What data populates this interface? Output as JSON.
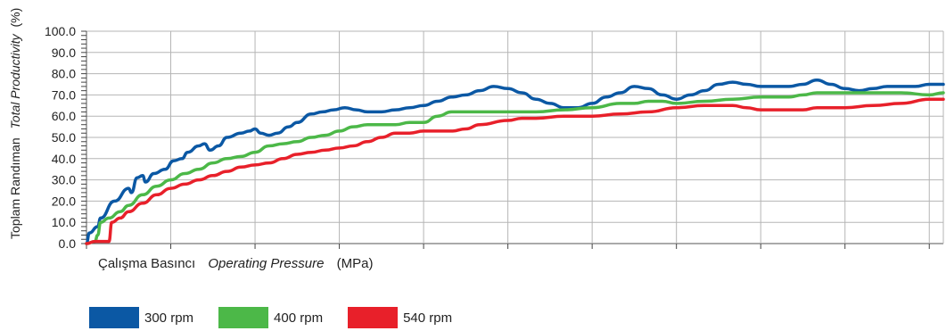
{
  "chart_data": {
    "type": "line",
    "ylabel": {
      "main": "Toplam Randıman",
      "italic": "Total Productivity",
      "unit": "(%)"
    },
    "xlabel": {
      "main": "Çalışma Basıncı",
      "italic": "Operating Pressure",
      "unit": "(MPa)"
    },
    "xlim": [
      0,
      3.05
    ],
    "ylim": [
      0,
      100
    ],
    "x_ticks": [
      "0.0",
      "0.3",
      "0.6",
      "0.9",
      "1.2",
      "1.5",
      "1.8",
      "2.1",
      "2.4",
      "2.7",
      "3.0"
    ],
    "y_ticks": [
      "0.0",
      "10.0",
      "20.0",
      "30.0",
      "40.0",
      "50.0",
      "60.0",
      "70.0",
      "80.0",
      "90.0",
      "100.0"
    ],
    "grid": true,
    "legend_position": "bottom-left",
    "series": [
      {
        "name": "300 rpm",
        "color": "#0b58a4",
        "points": [
          [
            0,
            0
          ],
          [
            0.01,
            5
          ],
          [
            0.04,
            8
          ],
          [
            0.05,
            12
          ],
          [
            0.1,
            20
          ],
          [
            0.15,
            26
          ],
          [
            0.16,
            24
          ],
          [
            0.18,
            31
          ],
          [
            0.2,
            32
          ],
          [
            0.21,
            29
          ],
          [
            0.24,
            33
          ],
          [
            0.28,
            35
          ],
          [
            0.31,
            39
          ],
          [
            0.34,
            40
          ],
          [
            0.36,
            43
          ],
          [
            0.4,
            46
          ],
          [
            0.42,
            47
          ],
          [
            0.44,
            44
          ],
          [
            0.47,
            46
          ],
          [
            0.5,
            50
          ],
          [
            0.55,
            52
          ],
          [
            0.58,
            53
          ],
          [
            0.6,
            54
          ],
          [
            0.62,
            52
          ],
          [
            0.65,
            51
          ],
          [
            0.68,
            52
          ],
          [
            0.72,
            55
          ],
          [
            0.75,
            57
          ],
          [
            0.8,
            61
          ],
          [
            0.84,
            62
          ],
          [
            0.88,
            63
          ],
          [
            0.92,
            64
          ],
          [
            0.96,
            63
          ],
          [
            1.0,
            62
          ],
          [
            1.05,
            62
          ],
          [
            1.1,
            63
          ],
          [
            1.15,
            64
          ],
          [
            1.2,
            65
          ],
          [
            1.25,
            67
          ],
          [
            1.3,
            69
          ],
          [
            1.35,
            70
          ],
          [
            1.4,
            72
          ],
          [
            1.45,
            74
          ],
          [
            1.5,
            73
          ],
          [
            1.55,
            71
          ],
          [
            1.6,
            68
          ],
          [
            1.65,
            66
          ],
          [
            1.7,
            64
          ],
          [
            1.75,
            64
          ],
          [
            1.8,
            66
          ],
          [
            1.85,
            69
          ],
          [
            1.9,
            71
          ],
          [
            1.95,
            74
          ],
          [
            2.0,
            73
          ],
          [
            2.05,
            70
          ],
          [
            2.1,
            68
          ],
          [
            2.15,
            70
          ],
          [
            2.2,
            72
          ],
          [
            2.25,
            75
          ],
          [
            2.3,
            76
          ],
          [
            2.35,
            75
          ],
          [
            2.4,
            74
          ],
          [
            2.45,
            74
          ],
          [
            2.5,
            74
          ],
          [
            2.55,
            75
          ],
          [
            2.6,
            77
          ],
          [
            2.65,
            75
          ],
          [
            2.7,
            73
          ],
          [
            2.75,
            72
          ],
          [
            2.8,
            73
          ],
          [
            2.85,
            74
          ],
          [
            2.9,
            74
          ],
          [
            2.95,
            74
          ],
          [
            3.0,
            75
          ],
          [
            3.05,
            75
          ]
        ]
      },
      {
        "name": "400 rpm",
        "color": "#4cb848",
        "points": [
          [
            0,
            0
          ],
          [
            0.03,
            1
          ],
          [
            0.04,
            4
          ],
          [
            0.05,
            10
          ],
          [
            0.08,
            12
          ],
          [
            0.12,
            15
          ],
          [
            0.15,
            18
          ],
          [
            0.2,
            23
          ],
          [
            0.25,
            27
          ],
          [
            0.3,
            30
          ],
          [
            0.35,
            33
          ],
          [
            0.4,
            35
          ],
          [
            0.45,
            38
          ],
          [
            0.5,
            40
          ],
          [
            0.55,
            41
          ],
          [
            0.6,
            43
          ],
          [
            0.65,
            46
          ],
          [
            0.7,
            47
          ],
          [
            0.75,
            48
          ],
          [
            0.8,
            50
          ],
          [
            0.85,
            51
          ],
          [
            0.9,
            53
          ],
          [
            0.95,
            55
          ],
          [
            1.0,
            56
          ],
          [
            1.1,
            56
          ],
          [
            1.15,
            57
          ],
          [
            1.2,
            57
          ],
          [
            1.25,
            60
          ],
          [
            1.3,
            62
          ],
          [
            1.4,
            62
          ],
          [
            1.5,
            62
          ],
          [
            1.6,
            62
          ],
          [
            1.7,
            63
          ],
          [
            1.8,
            64
          ],
          [
            1.9,
            66
          ],
          [
            1.95,
            66
          ],
          [
            2.0,
            67
          ],
          [
            2.05,
            67
          ],
          [
            2.1,
            66
          ],
          [
            2.2,
            67
          ],
          [
            2.3,
            68
          ],
          [
            2.4,
            69
          ],
          [
            2.5,
            69
          ],
          [
            2.55,
            70
          ],
          [
            2.6,
            71
          ],
          [
            2.7,
            71
          ],
          [
            2.8,
            71
          ],
          [
            2.9,
            71
          ],
          [
            3.0,
            70
          ],
          [
            3.05,
            71
          ]
        ]
      },
      {
        "name": "540 rpm",
        "color": "#e8202a",
        "points": [
          [
            0,
            0
          ],
          [
            0.03,
            1
          ],
          [
            0.08,
            1
          ],
          [
            0.09,
            10
          ],
          [
            0.12,
            12
          ],
          [
            0.15,
            15
          ],
          [
            0.2,
            19
          ],
          [
            0.25,
            23
          ],
          [
            0.3,
            26
          ],
          [
            0.35,
            28
          ],
          [
            0.4,
            30
          ],
          [
            0.45,
            32
          ],
          [
            0.5,
            34
          ],
          [
            0.55,
            36
          ],
          [
            0.6,
            37
          ],
          [
            0.65,
            38
          ],
          [
            0.7,
            40
          ],
          [
            0.75,
            42
          ],
          [
            0.8,
            43
          ],
          [
            0.85,
            44
          ],
          [
            0.9,
            45
          ],
          [
            0.95,
            46
          ],
          [
            1.0,
            48
          ],
          [
            1.05,
            50
          ],
          [
            1.1,
            52
          ],
          [
            1.15,
            52
          ],
          [
            1.2,
            53
          ],
          [
            1.3,
            53
          ],
          [
            1.35,
            54
          ],
          [
            1.4,
            56
          ],
          [
            1.5,
            58
          ],
          [
            1.55,
            59
          ],
          [
            1.6,
            59
          ],
          [
            1.7,
            60
          ],
          [
            1.8,
            60
          ],
          [
            1.9,
            61
          ],
          [
            2.0,
            62
          ],
          [
            2.1,
            64
          ],
          [
            2.2,
            65
          ],
          [
            2.3,
            65
          ],
          [
            2.35,
            64
          ],
          [
            2.4,
            63
          ],
          [
            2.5,
            63
          ],
          [
            2.55,
            63
          ],
          [
            2.6,
            64
          ],
          [
            2.7,
            64
          ],
          [
            2.8,
            65
          ],
          [
            2.9,
            66
          ],
          [
            3.0,
            68
          ],
          [
            3.05,
            68
          ]
        ]
      }
    ]
  }
}
